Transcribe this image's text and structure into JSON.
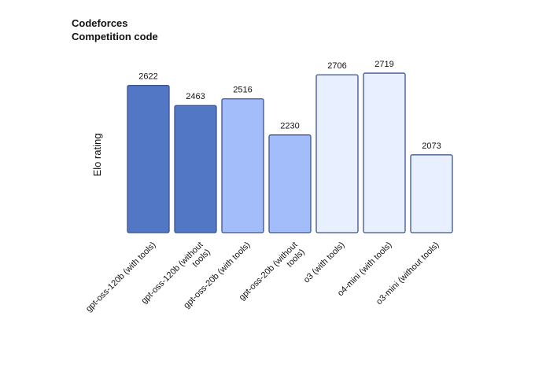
{
  "chart_data": {
    "type": "bar",
    "title": "Codeforces",
    "subtitle": "Competition code",
    "ylabel": "Elo rating",
    "xlabel": "",
    "categories": [
      "gpt-oss-120b (with tools)",
      "gpt-oss-120b (without tools)",
      "gpt-oss-20b (with tools)",
      "gpt-oss-20b (without tools)",
      "o3 (with tools)",
      "o4-mini (with tools)",
      "o3-mini (without tools)"
    ],
    "tick_labels": [
      [
        "gpt-oss-120b (with tools)"
      ],
      [
        "gpt-oss-120b (without",
        "tools)"
      ],
      [
        "gpt-oss-20b (with tools)"
      ],
      [
        "gpt-oss-20b (without",
        "tools)"
      ],
      [
        "o3 (with tools)"
      ],
      [
        "o4-mini (with tools)"
      ],
      [
        "o3-mini (without tools)"
      ]
    ],
    "values": [
      2622,
      2463,
      2516,
      2230,
      2706,
      2719,
      2073
    ],
    "data_labels": [
      "2622",
      "2463",
      "2516",
      "2230",
      "2706",
      "2719",
      "2073"
    ],
    "colors": [
      "#5277c4",
      "#5277c4",
      "#a3bcfa",
      "#a3bcfa",
      "#e8effe",
      "#e8effe",
      "#e8effe"
    ],
    "stroke_color": "#3a5592",
    "grid": false,
    "legend": "none"
  }
}
